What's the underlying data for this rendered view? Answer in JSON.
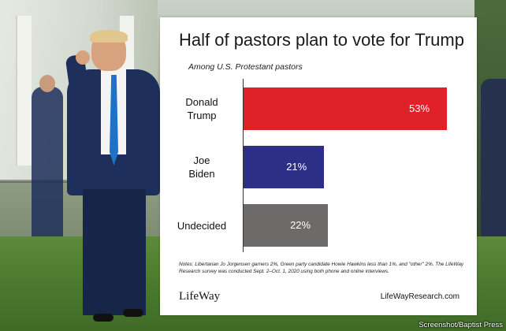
{
  "chart_data": {
    "type": "bar",
    "orientation": "horizontal",
    "title": "Half of pastors plan to vote for Trump",
    "subtitle": "Among U.S. Protestant pastors",
    "categories": [
      {
        "line1": "Donald",
        "line2": "Trump"
      },
      {
        "line1": "Joe",
        "line2": "Biden"
      },
      {
        "line1": "Undecided",
        "line2": ""
      }
    ],
    "values": [
      53,
      21,
      22
    ],
    "value_labels": [
      "53%",
      "21%",
      "22%"
    ],
    "colors": [
      "#e0212a",
      "#2d2f86",
      "#6d6a6a"
    ],
    "xlim": [
      0,
      53
    ],
    "grid": false,
    "legend": "none"
  },
  "notes": "Notes: Libertarian Jo Jorgensen garners 2%, Green party candidate Howie Hawkins less than 1%, and \"other\" 2%. The LifeWay Research survey was conducted Sept. 2–Oct. 1, 2020 using both phone and online interviews.",
  "logo_text": "LifeWay",
  "url": "LifeWayResearch.com",
  "photo_credit": "Screenshot/Baptist Press"
}
